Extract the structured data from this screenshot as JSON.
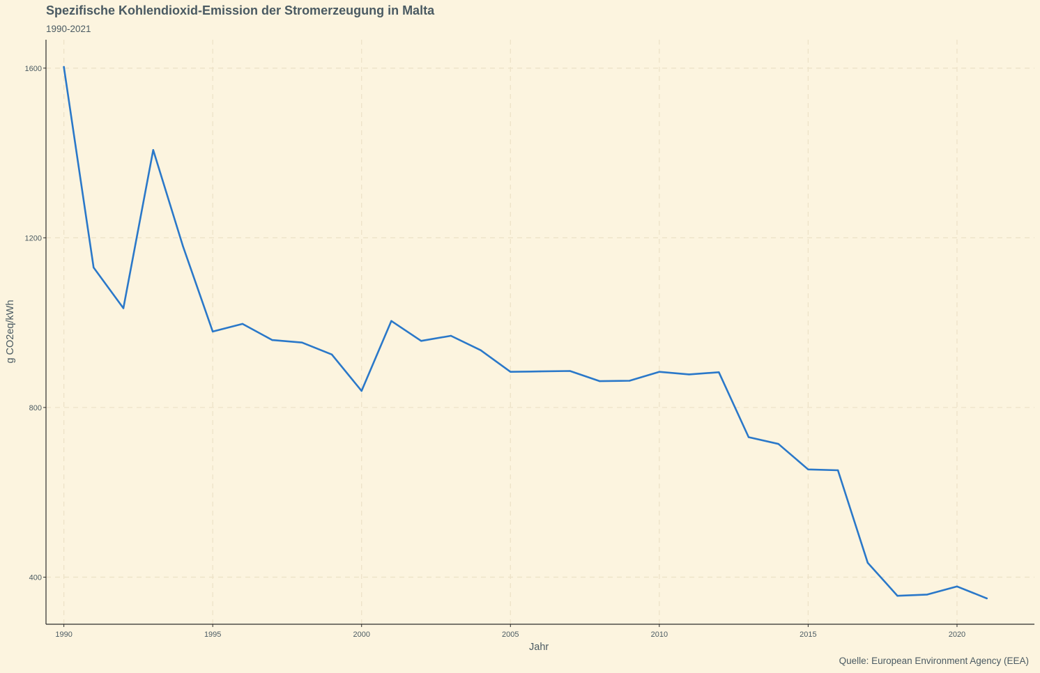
{
  "chart_data": {
    "type": "line",
    "title": "Spezifische Kohlendioxid-Emission der Stromerzeugung in Malta",
    "subtitle": "1990-2021",
    "xlabel": "Jahr",
    "ylabel": "g CO2eq/kWh",
    "caption": "Quelle: European Environment Agency (EEA)",
    "xlim": [
      1989.4,
      2022.6
    ],
    "ylim": [
      289,
      1667
    ],
    "x_ticks": [
      1990,
      1995,
      2000,
      2005,
      2010,
      2015,
      2020
    ],
    "y_ticks": [
      400,
      800,
      1200,
      1600
    ],
    "grid": true,
    "line_color": "#2a78c9",
    "x": [
      1990,
      1991,
      1992,
      1993,
      1994,
      1995,
      1996,
      1997,
      1998,
      1999,
      2000,
      2001,
      2002,
      2003,
      2004,
      2005,
      2006,
      2007,
      2008,
      2009,
      2010,
      2011,
      2012,
      2013,
      2014,
      2015,
      2016,
      2017,
      2018,
      2019,
      2020,
      2021
    ],
    "series": [
      {
        "values": [
          1603,
          1130,
          1034,
          1407,
          1180,
          979,
          997,
          959,
          953,
          925,
          839,
          1004,
          957,
          969,
          935,
          884,
          885,
          886,
          862,
          863,
          884,
          878,
          883,
          730,
          714,
          654,
          652,
          434,
          356,
          359,
          378,
          350
        ]
      }
    ]
  }
}
